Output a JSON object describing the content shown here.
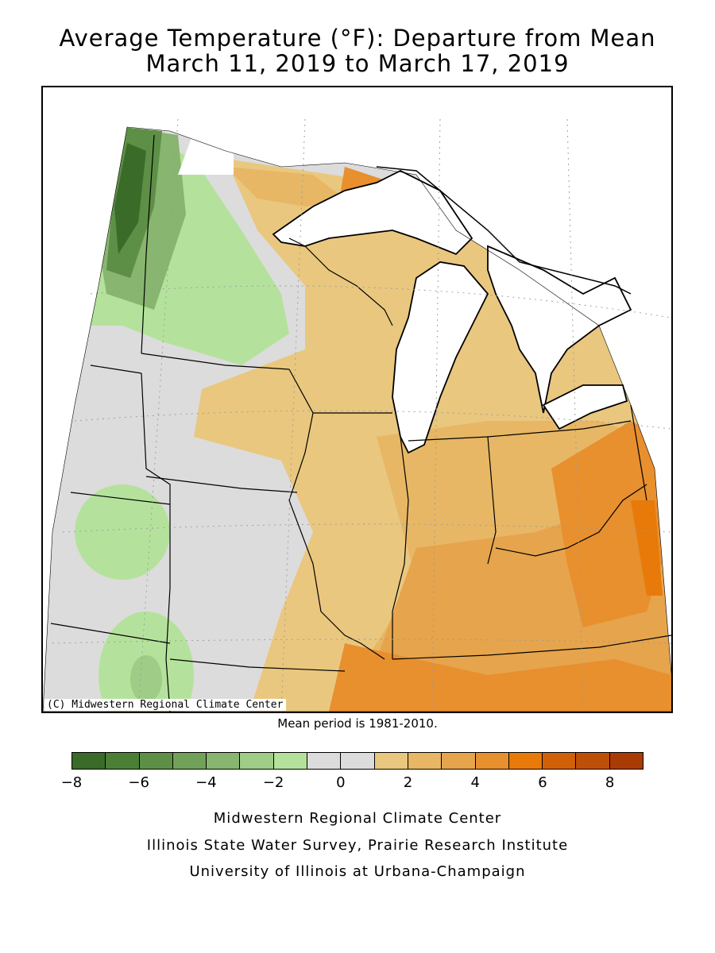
{
  "title": {
    "line1": "Average Temperature (°F): Departure from Mean",
    "line2": "March 11, 2019 to March 17, 2019"
  },
  "map": {
    "copyright": "(C) Midwestern Regional Climate Center",
    "mean_note": "Mean period is 1981-2010."
  },
  "legend": {
    "bins": [
      {
        "from": -8,
        "to": -7,
        "color": "#3b6b28"
      },
      {
        "from": -7,
        "to": -6,
        "color": "#4c7f36"
      },
      {
        "from": -6,
        "to": -5,
        "color": "#5e8f46"
      },
      {
        "from": -5,
        "to": -4,
        "color": "#72a25a"
      },
      {
        "from": -4,
        "to": -3,
        "color": "#88b56f"
      },
      {
        "from": -3,
        "to": -2,
        "color": "#9fcc86"
      },
      {
        "from": -2,
        "to": -1,
        "color": "#b4e29c"
      },
      {
        "from": -1,
        "to": 0,
        "color": "#dcdcdc"
      },
      {
        "from": 0,
        "to": 1,
        "color": "#dcdcdc"
      },
      {
        "from": 1,
        "to": 2,
        "color": "#e9c77e"
      },
      {
        "from": 2,
        "to": 3,
        "color": "#e7b765"
      },
      {
        "from": 3,
        "to": 4,
        "color": "#e6a44c"
      },
      {
        "from": 4,
        "to": 5,
        "color": "#e88f2e"
      },
      {
        "from": 5,
        "to": 6,
        "color": "#e77a08"
      },
      {
        "from": 6,
        "to": 7,
        "color": "#d06108"
      },
      {
        "from": 7,
        "to": 8,
        "color": "#be4f08"
      },
      {
        "from": 8,
        "to": 9,
        "color": "#a83c04"
      }
    ],
    "tick_labels": [
      "−8",
      "−6",
      "−4",
      "−2",
      "0",
      "2",
      "4",
      "6",
      "8"
    ]
  },
  "credits": {
    "line1": "Midwestern Regional Climate Center",
    "line2": "Illinois State Water Survey, Prairie Research Institute",
    "line3": "University of Illinois at Urbana-Champaign"
  }
}
